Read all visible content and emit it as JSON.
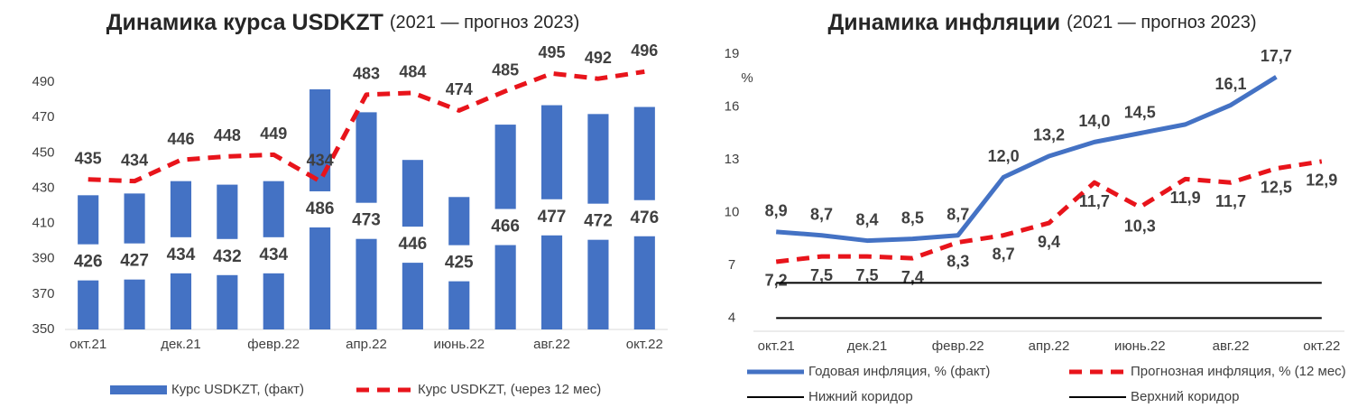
{
  "chart_data": [
    {
      "type": "bar",
      "title": "Динамика курса USDKZT",
      "subtitle": "(2021 — прогноз 2023)",
      "categories": [
        "окт.21",
        null,
        "дек.21",
        null,
        "февр.22",
        null,
        "апр.22",
        null,
        "июнь.22",
        null,
        "авг.22",
        null,
        "окт.22"
      ],
      "series": [
        {
          "name": "Курс USDKZT, (факт)",
          "type": "bar",
          "color": "#4472c4",
          "values": [
            426,
            427,
            434,
            432,
            434,
            486,
            473,
            446,
            425,
            466,
            477,
            472,
            476
          ]
        },
        {
          "name": "Курс USDKZT, (через 12 мес)",
          "type": "line",
          "dashed": true,
          "color": "#e8141b",
          "values": [
            435,
            434,
            446,
            448,
            449,
            434,
            483,
            484,
            474,
            485,
            495,
            492,
            496
          ]
        }
      ],
      "ylim": [
        350,
        510
      ],
      "yticks": [
        350,
        370,
        390,
        410,
        430,
        450,
        470,
        490
      ],
      "grid": false
    },
    {
      "type": "line",
      "title": "Динамика инфляции",
      "subtitle": "(2021 — прогноз 2023)",
      "ylabel": "%",
      "categories": [
        "окт.21",
        null,
        "дек.21",
        null,
        "февр.22",
        null,
        "апр.22",
        null,
        "июнь.22",
        null,
        "авг.22",
        null,
        "окт.22"
      ],
      "series": [
        {
          "name": "Годовая инфляция, % (факт)",
          "color": "#4472c4",
          "width": 5,
          "label_side": "above",
          "values": [
            8.9,
            8.7,
            8.4,
            8.5,
            8.7,
            12.0,
            13.2,
            14.0,
            14.5,
            15.0,
            16.1,
            17.7,
            null
          ],
          "value_labels": [
            "8,9",
            "8,7",
            "8,4",
            "8,5",
            "8,7",
            "12,0",
            "13,2",
            "14,0",
            "14,5",
            null,
            "16,1",
            "17,7",
            null
          ]
        },
        {
          "name": "Прогнозная инфляция, % (12 мес)",
          "color": "#e8141b",
          "width": 5,
          "dashed": true,
          "label_side": "below",
          "values": [
            7.2,
            7.5,
            7.5,
            7.4,
            8.3,
            8.7,
            9.4,
            11.7,
            10.3,
            11.9,
            11.7,
            12.5,
            12.9
          ],
          "value_labels": [
            "7,2",
            "7,5",
            "7,5",
            "7,4",
            "8,3",
            "8,7",
            "9,4",
            "11,7",
            "10,3",
            "11,9",
            "11,7",
            "12,5",
            "12,9"
          ]
        },
        {
          "name": "Нижний коридор",
          "color": "#000000",
          "width": 2,
          "values": [
            6,
            6,
            6,
            6,
            6,
            6,
            6,
            6,
            6,
            6,
            6,
            6,
            6
          ]
        },
        {
          "name": "Верхний коридор",
          "color": "#000000",
          "width": 2,
          "values": [
            4,
            4,
            4,
            4,
            4,
            4,
            4,
            4,
            4,
            4,
            4,
            4,
            4
          ]
        }
      ],
      "ylim": [
        3.25,
        19.25
      ],
      "yticks": [
        4,
        7,
        10,
        13,
        16,
        19
      ],
      "grid": false
    }
  ]
}
